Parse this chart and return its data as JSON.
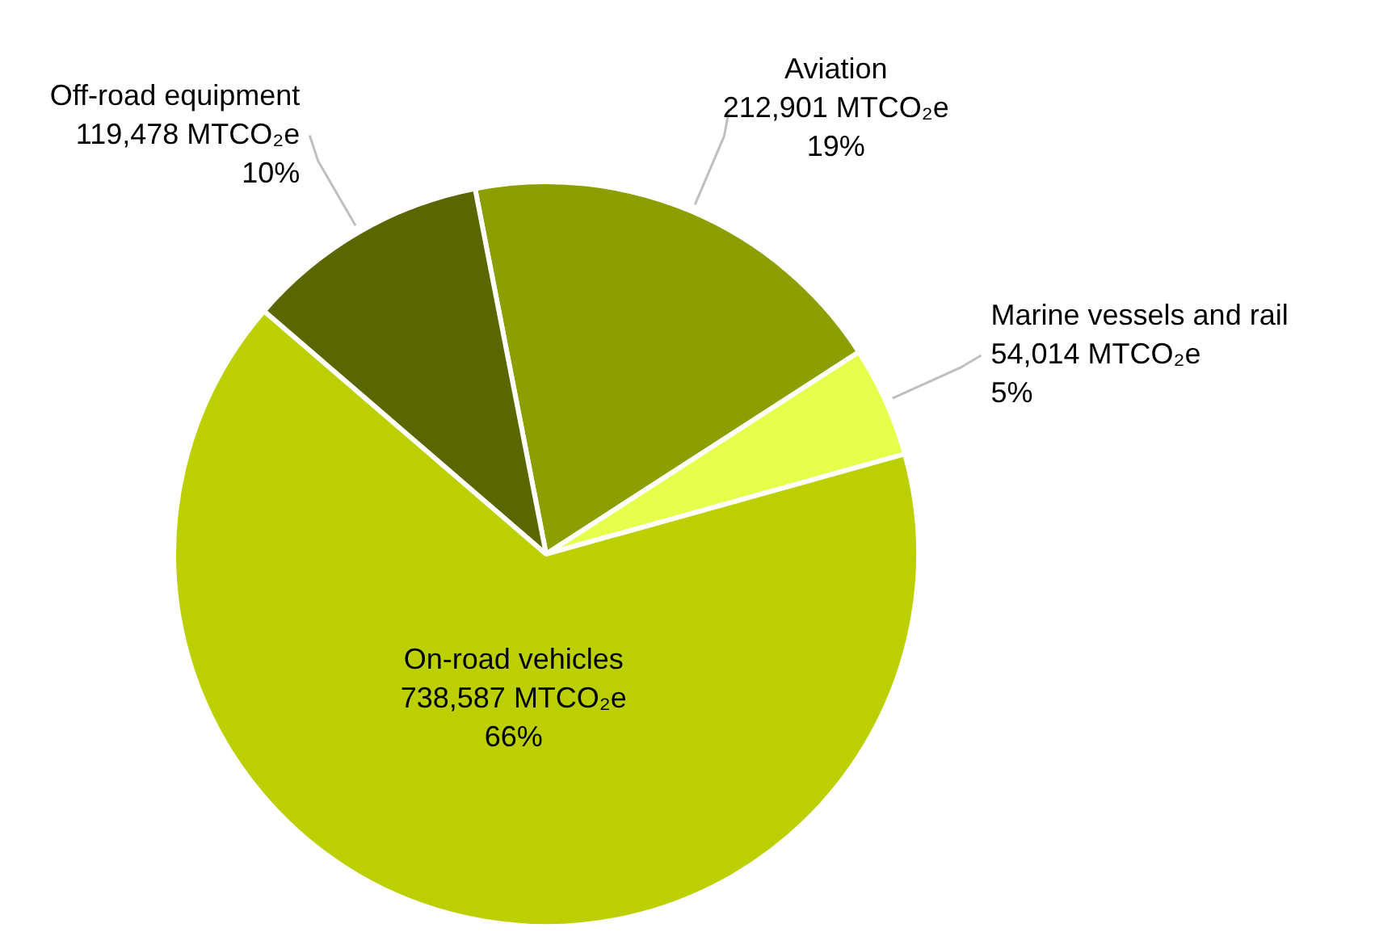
{
  "chart_data": {
    "type": "pie",
    "categories": [
      "Aviation",
      "Marine vessels and rail",
      "On-road vehicles",
      "Off-road equipment"
    ],
    "values": [
      212901,
      54014,
      738587,
      119478
    ],
    "colors": [
      "#8c9e00",
      "#e6ff4a",
      "#bccf00",
      "#5a6600"
    ],
    "value_labels": [
      "212,901 MTCO₂e\n19%",
      "54,014 MTCO₂e\n5%",
      "738,587 MTCO₂e\n66%",
      "119,478 MTCO₂e\n10%"
    ],
    "legend": false
  }
}
